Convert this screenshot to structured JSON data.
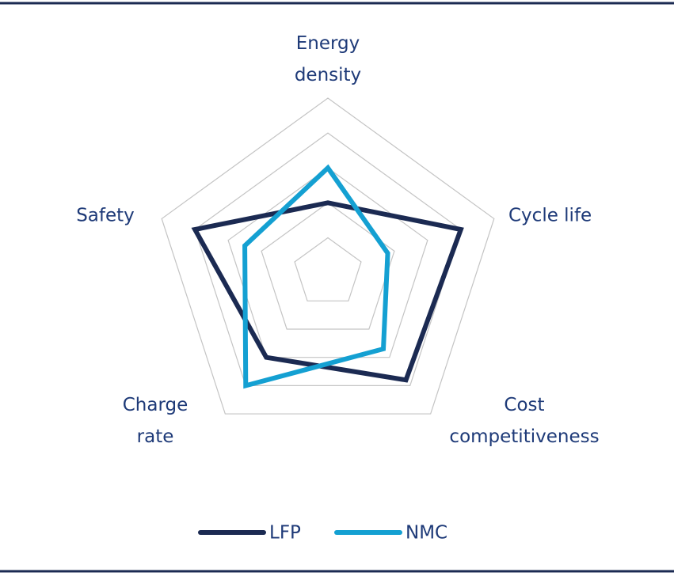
{
  "chart_data": {
    "type": "radar",
    "categories": [
      "Energy density",
      "Cycle life",
      "Cost competitiveness",
      "Charge rate",
      "Safety"
    ],
    "series": [
      {
        "name": "LFP",
        "color": "#1b2a52",
        "values": [
          2,
          4,
          3.8,
          3,
          4
        ]
      },
      {
        "name": "NMC",
        "color": "#14a0d2",
        "values": [
          3,
          1.8,
          2.7,
          4,
          2.5
        ]
      }
    ],
    "rlim": [
      0,
      5
    ],
    "rticks": [
      1,
      2,
      3,
      4,
      5
    ],
    "grid": true,
    "legend": "bottom"
  }
}
